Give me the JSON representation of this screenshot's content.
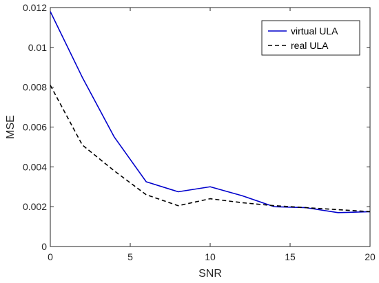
{
  "chart_data": {
    "type": "line",
    "title": "",
    "xlabel": "SNR",
    "ylabel": "MSE",
    "xlim": [
      0,
      20
    ],
    "ylim": [
      0,
      0.012
    ],
    "xticks": [
      0,
      5,
      10,
      15,
      20
    ],
    "xtick_labels": [
      "0",
      "5",
      "10",
      "15",
      "20"
    ],
    "yticks": [
      0,
      0.002,
      0.004,
      0.006,
      0.008,
      0.01,
      0.012
    ],
    "ytick_labels": [
      "0",
      "0.002",
      "0.004",
      "0.006",
      "0.008",
      "0.01",
      "0.012"
    ],
    "grid": false,
    "legend_position": "top-right",
    "x": [
      0,
      2,
      4,
      6,
      8,
      10,
      12,
      14,
      16,
      18,
      20
    ],
    "series": [
      {
        "name": "virtual ULA",
        "color": "#0000cc",
        "dash": "solid",
        "values": [
          0.0118,
          0.0085,
          0.0055,
          0.00325,
          0.00275,
          0.003,
          0.00255,
          0.002,
          0.00195,
          0.0017,
          0.00175
        ]
      },
      {
        "name": "real ULA",
        "color": "#000000",
        "dash": "dashed",
        "values": [
          0.0081,
          0.0051,
          0.0038,
          0.0026,
          0.00205,
          0.0024,
          0.0022,
          0.00205,
          0.00195,
          0.00185,
          0.00175
        ]
      }
    ]
  }
}
